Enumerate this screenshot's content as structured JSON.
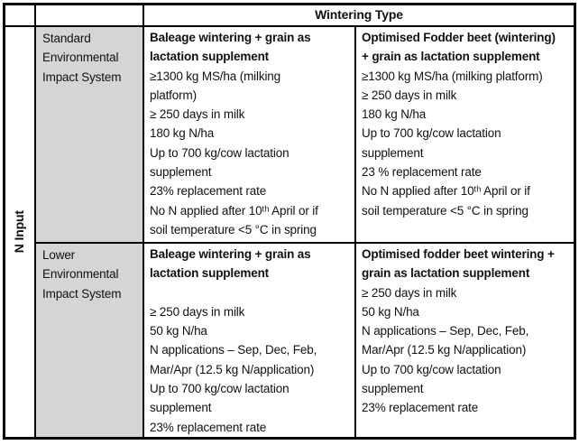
{
  "colors": {
    "shaded_cell": "#d5d5d5",
    "border": "#000000",
    "text": "#111111",
    "background": "#ffffff"
  },
  "table": {
    "column_header": "Wintering Type",
    "row_group_label": "N Input",
    "rows": [
      {
        "system_label": "Standard Environmental Impact System",
        "cells": [
          {
            "title_lines": [
              "Baleage wintering + grain as",
              "lactation supplement"
            ],
            "body_lines": [
              "≥1300 kg MS/ha (milking",
              "platform)",
              "≥ 250 days in milk",
              "180 kg N/ha",
              "Up to 700 kg/cow lactation",
              "supplement",
              "23% replacement rate",
              "No N applied after 10ᵗʰ April or if",
              "soil temperature <5 °C in spring"
            ]
          },
          {
            "title_lines": [
              "Optimised Fodder beet (wintering)",
              "+ grain as lactation supplement"
            ],
            "body_lines": [
              "≥1300 kg MS/ha (milking platform)",
              "≥ 250 days in milk",
              "180 kg N/ha",
              "Up to 700 kg/cow lactation",
              "supplement",
              "23 % replacement rate",
              "No N applied after 10ᵗʰ April or if",
              "soil temperature <5 °C in spring"
            ]
          }
        ]
      },
      {
        "system_label": "Lower Environmental Impact System",
        "cells": [
          {
            "title_lines": [
              "Baleage wintering + grain as",
              "lactation supplement"
            ],
            "body_lines": [
              "",
              "≥ 250 days in milk",
              "50 kg N/ha",
              "N applications – Sep, Dec, Feb,",
              "Mar/Apr (12.5 kg N/application)",
              "Up to 700 kg/cow lactation",
              "supplement",
              "23% replacement rate"
            ]
          },
          {
            "title_lines": [
              "Optimised fodder beet wintering +",
              "grain as lactation supplement"
            ],
            "body_lines": [
              "≥ 250 days in milk",
              "50 kg N/ha",
              "N applications – Sep, Dec, Feb,",
              "Mar/Apr (12.5 kg N/application)",
              "Up to 700 kg/cow lactation",
              "supplement",
              "23% replacement rate"
            ]
          }
        ]
      }
    ]
  }
}
